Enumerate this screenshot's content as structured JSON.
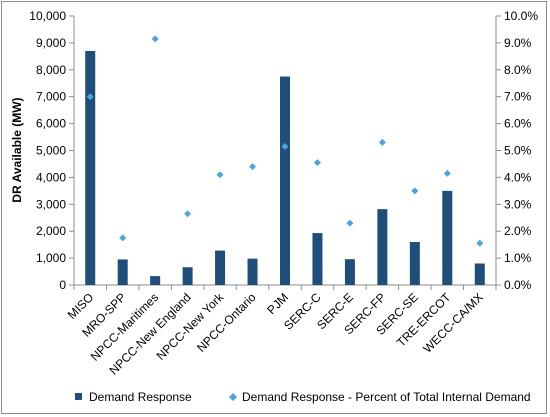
{
  "chart_data": {
    "type": "bar",
    "title": "",
    "categories": [
      "MISO",
      "MRO-SPP",
      "NPCC-Maritimes",
      "NPCC-New England",
      "NPCC-New York",
      "NPCC-Ontario",
      "PJM",
      "SERC-C",
      "SERC-E",
      "SERC-FP",
      "SERC-SE",
      "TRE-ERCOT",
      "WECC-CA/MX"
    ],
    "series": [
      {
        "name": "Demand Response",
        "kind": "bar",
        "axis": "left",
        "color": "#1f4e79",
        "values": [
          8700,
          950,
          330,
          660,
          1280,
          980,
          7750,
          1930,
          960,
          2820,
          1600,
          3500,
          800
        ]
      },
      {
        "name": "Demand Response - Percent of Total Internal Demand",
        "kind": "scatter",
        "marker": "diamond",
        "axis": "right",
        "color": "#4fa3d9",
        "values": [
          7.0,
          1.75,
          9.15,
          2.65,
          4.1,
          4.4,
          5.15,
          4.55,
          2.3,
          5.3,
          3.5,
          4.15,
          1.55
        ]
      }
    ],
    "ylabel": "DR Available (MW)",
    "xlabel": "",
    "ylim": [
      0,
      10000
    ],
    "y_ticks": [
      "0",
      "1,000",
      "2,000",
      "3,000",
      "4,000",
      "5,000",
      "6,000",
      "7,000",
      "8,000",
      "9,000",
      "10,000"
    ],
    "y2lim": [
      0,
      10
    ],
    "y2_ticks": [
      "0.0%",
      "1.0%",
      "2.0%",
      "3.0%",
      "4.0%",
      "5.0%",
      "6.0%",
      "7.0%",
      "8.0%",
      "9.0%",
      "10.0%"
    ],
    "grid": false,
    "legend_position": "bottom"
  }
}
